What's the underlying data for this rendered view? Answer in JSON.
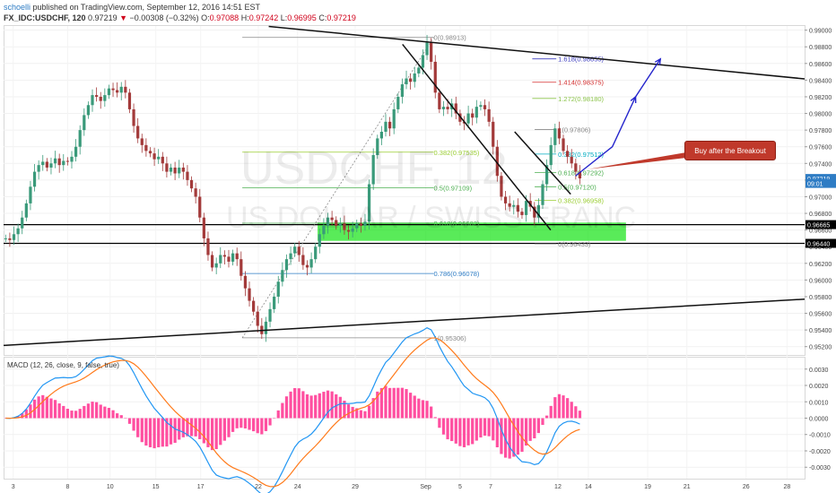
{
  "header": {
    "author": "schoelli",
    "publisher": "published on TradingView.com, September 12, 2016 14:51 EST",
    "symbol": "FX_IDC:USDCHF, 120",
    "last": "0.97219",
    "change": "−0.00308 (−0.32%)",
    "o_label": "O:",
    "o": "0.97088",
    "h_label": "H:",
    "h": "0.97242",
    "l_label": "L:",
    "l": "0.96995",
    "c_label": "C:",
    "c": "0.97219"
  },
  "watermark": {
    "line1": "USDCHF, 12",
    "line2": "US DOLLAR / SWISS FRANC"
  },
  "annotation": {
    "text": "Buy after the Breakout"
  },
  "colors": {
    "up": "#3a9a7a",
    "down": "#a33a3a",
    "accent": "#2e7cc4",
    "green_zone": "#00e000",
    "macd": "#2196f3",
    "signal": "#ff7a1a",
    "hist": "#ff4fa0"
  },
  "chart_data": [
    {
      "type": "candlestick",
      "symbol": "FX_IDC:USDCHF",
      "interval": "120",
      "ylim": [
        0.951,
        0.9905
      ],
      "price_ticks": [
        "0.99000",
        "0.98800",
        "0.98600",
        "0.98400",
        "0.98200",
        "0.98000",
        "0.97800",
        "0.97600",
        "0.97400",
        "0.97200",
        "0.97000",
        "0.96800",
        "0.96600",
        "0.96400",
        "0.96200",
        "0.96000",
        "0.95800",
        "0.95600",
        "0.95400",
        "0.95200"
      ],
      "x_ticks": [
        "3",
        "8",
        "10",
        "15",
        "17",
        "22",
        "24",
        "29",
        "Sep",
        "5",
        "7",
        "12",
        "14",
        "19",
        "21",
        "26",
        "28"
      ],
      "price_markers": [
        {
          "label": "0.97219",
          "value": 0.97219,
          "color": "#2e7cc4"
        },
        {
          "label": "09:01",
          "value": 0.9716,
          "color": "#2e7cc4"
        },
        {
          "label": "0.96665",
          "value": 0.96665,
          "color": "#000000"
        },
        {
          "label": "0.96440",
          "value": 0.9644,
          "color": "#000000"
        }
      ],
      "fib_levels": [
        {
          "label": "0(0.98913)",
          "value": 0.98913,
          "color": "#888888"
        },
        {
          "label": "0.382(0.97535)",
          "value": 0.97535,
          "color": "#9acd32"
        },
        {
          "label": "0.5(0.97109)",
          "value": 0.97109,
          "color": "#4caf50"
        },
        {
          "label": "0.618(0.96682)",
          "value": 0.96682,
          "color": "#4caf50"
        },
        {
          "label": "0.786(0.96078)",
          "value": 0.96078,
          "color": "#2e7cc4"
        },
        {
          "label": "1(0.95306)",
          "value": 0.95306,
          "color": "#888888"
        }
      ],
      "fib_levels_2": [
        {
          "label": "1.618(0.98655)",
          "value": 0.98655,
          "color": "#3f3fbf"
        },
        {
          "label": "1.414(0.98375)",
          "value": 0.98375,
          "color": "#d32f2f"
        },
        {
          "label": "1.272(0.98180)",
          "value": 0.9818,
          "color": "#8bc34a"
        },
        {
          "label": "1(0.97806)",
          "value": 0.97806,
          "color": "#888888"
        },
        {
          "label": "0.382(0.97512)",
          "value": 0.97512,
          "color": "#00acc1"
        },
        {
          "label": "0.618(0.97292)",
          "value": 0.97292,
          "color": "#4caf50"
        },
        {
          "label": "0.5(0.97120)",
          "value": 0.9712,
          "color": "#4caf50"
        },
        {
          "label": "0.382(0.96958)",
          "value": 0.96958,
          "color": "#9acd32"
        },
        {
          "label": "0(0.96433)",
          "value": 0.96433,
          "color": "#888888"
        }
      ],
      "support_zone": [
        0.9647,
        0.9669
      ],
      "horizontal_lines": [
        0.96665,
        0.9644
      ],
      "trendlines": [
        {
          "name": "upper",
          "from": [
            0.331,
            0.99045
          ],
          "to": [
            1.0,
            0.98415
          ]
        },
        {
          "name": "lower",
          "from": [
            0.0,
            0.95215
          ],
          "to": [
            1.0,
            0.9577
          ]
        },
        {
          "name": "down",
          "from": [
            0.498,
            0.9883
          ],
          "to": [
            0.683,
            0.966
          ]
        },
        {
          "name": "down2",
          "from": [
            0.638,
            0.9778
          ],
          "to": [
            0.708,
            0.9703
          ]
        }
      ],
      "closes": [
        0.965,
        0.9648,
        0.9655,
        0.9662,
        0.9675,
        0.9692,
        0.9712,
        0.973,
        0.9738,
        0.9742,
        0.9735,
        0.974,
        0.9746,
        0.9738,
        0.9743,
        0.9742,
        0.9748,
        0.976,
        0.978,
        0.9798,
        0.981,
        0.9822,
        0.982,
        0.9815,
        0.9822,
        0.983,
        0.9828,
        0.9825,
        0.9832,
        0.9825,
        0.9805,
        0.9785,
        0.977,
        0.9762,
        0.9755,
        0.9752,
        0.9745,
        0.9748,
        0.974,
        0.973,
        0.9735,
        0.9728,
        0.9735,
        0.973,
        0.972,
        0.971,
        0.97,
        0.9675,
        0.965,
        0.963,
        0.9615,
        0.962,
        0.963,
        0.9628,
        0.9622,
        0.9632,
        0.9625,
        0.9605,
        0.959,
        0.9575,
        0.9562,
        0.9545,
        0.9535,
        0.955,
        0.9565,
        0.958,
        0.9598,
        0.9612,
        0.9625,
        0.9632,
        0.964,
        0.963,
        0.9618,
        0.9615,
        0.9625,
        0.964,
        0.9655,
        0.9665,
        0.9675,
        0.9672,
        0.9665,
        0.9668,
        0.966,
        0.9658,
        0.9662,
        0.9668,
        0.9665,
        0.967,
        0.9715,
        0.975,
        0.977,
        0.9778,
        0.979,
        0.9782,
        0.9805,
        0.982,
        0.9835,
        0.9842,
        0.9838,
        0.9848,
        0.9855,
        0.987,
        0.9885,
        0.9862,
        0.9825,
        0.9805,
        0.9808,
        0.9805,
        0.9812,
        0.98,
        0.979,
        0.9788,
        0.98,
        0.9795,
        0.9808,
        0.981,
        0.9805,
        0.979,
        0.976,
        0.9725,
        0.97,
        0.9692,
        0.9688,
        0.969,
        0.9682,
        0.9678,
        0.9695,
        0.9688,
        0.9675,
        0.969,
        0.9715,
        0.9738,
        0.9762,
        0.9782,
        0.977,
        0.9755,
        0.9748,
        0.974,
        0.973,
        0.9722
      ],
      "macd": {
        "name": "MACD (12, 26, close, 9, false, true)",
        "ylim": [
          -0.0037,
          0.0037
        ],
        "ticks": [
          "0.0030",
          "0.0020",
          "0.0010",
          "0.0000",
          "-0.0010",
          "-0.0020",
          "-0.0030"
        ]
      }
    }
  ]
}
